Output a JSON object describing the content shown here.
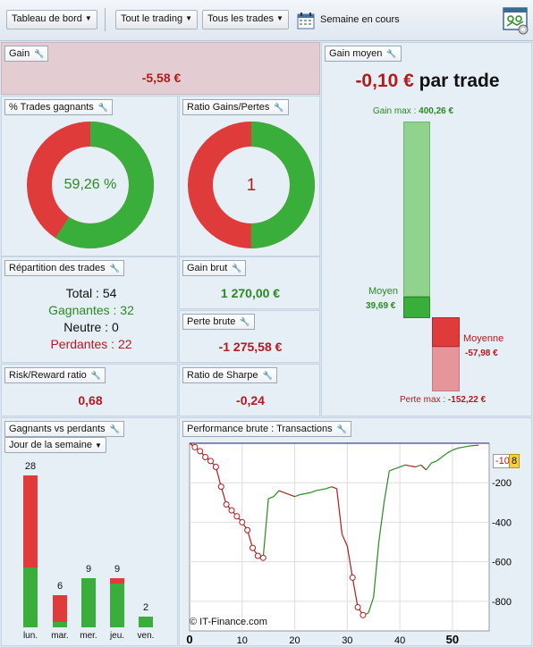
{
  "toolbar": {
    "dashboard": "Tableau de bord",
    "trading": "Tout le trading",
    "trades": "Tous les trades",
    "period": "Semaine en cours"
  },
  "gain": {
    "title": "Gain",
    "value": "-5,58 €"
  },
  "gain_moyen": {
    "title": "Gain moyen",
    "value": "-0,10 €",
    "suffix": "par trade",
    "gain_max_label": "Gain max :",
    "gain_max_value": "400,26 €",
    "moyen_label": "Moyen",
    "moyen_value": "39,69 €",
    "moyenne_label": "Moyenne",
    "moyenne_value": "-57,98 €",
    "perte_max_label": "Perte max :",
    "perte_max_value": "-152,22 €",
    "colors": {
      "gain": "#3aae3a",
      "gain_light": "#8fd38f",
      "loss": "#e03b3b",
      "loss_light": "#e6959a"
    }
  },
  "trades_gagnants": {
    "title": "% Trades gagnants",
    "value": "59,26 %",
    "fraction": 0.5926
  },
  "ratio": {
    "title": "Ratio Gains/Pertes",
    "value": "1",
    "fraction": 0.5
  },
  "repartition": {
    "title": "Répartition des trades",
    "total_label": "Total :",
    "total": "54",
    "gagnantes_label": "Gagnantes :",
    "gagnantes": "32",
    "neutre_label": "Neutre :",
    "neutre": "0",
    "perdantes_label": "Perdantes :",
    "perdantes": "22"
  },
  "gain_brut": {
    "title": "Gain brut",
    "value": "1 270,00 €"
  },
  "perte_brute": {
    "title": "Perte brute",
    "value": "-1 275,58 €"
  },
  "risk_reward": {
    "title": "Risk/Reward ratio",
    "value": "0,68"
  },
  "sharpe": {
    "title": "Ratio de Sharpe",
    "value": "-0,24"
  },
  "gvp": {
    "title": "Gagnants vs perdants",
    "dropdown": "Jour de la semaine",
    "days": [
      {
        "label": "lun.",
        "total": "28",
        "win": 11,
        "loss": 17
      },
      {
        "label": "mar.",
        "total": "6",
        "win": 1,
        "loss": 5
      },
      {
        "label": "mer.",
        "total": "9",
        "win": 9,
        "loss": 0
      },
      {
        "label": "jeu.",
        "total": "9",
        "win": 8,
        "loss": 1
      },
      {
        "label": "ven.",
        "total": "2",
        "win": 2,
        "loss": 0
      }
    ]
  },
  "performance": {
    "title": "Performance brute : Transactions",
    "copyright": "© IT-Finance.com",
    "last_value": "-10",
    "badge": "8"
  },
  "chart_data": {
    "type": "line",
    "xlim": [
      0,
      57
    ],
    "ylim": [
      -950,
      0
    ],
    "xticks": [
      "0",
      "10",
      "20",
      "30",
      "40",
      "50"
    ],
    "yticks": [
      "-200",
      "-400",
      "-600",
      "-800"
    ],
    "grid": true,
    "series": [
      {
        "points": [
          [
            0,
            0
          ],
          [
            1,
            -20
          ],
          [
            2,
            -40
          ],
          [
            3,
            -70
          ],
          [
            4,
            -90
          ],
          [
            5,
            -120
          ],
          [
            6,
            -220
          ],
          [
            7,
            -310
          ],
          [
            8,
            -340
          ],
          [
            9,
            -370
          ],
          [
            10,
            -400
          ],
          [
            11,
            -440
          ],
          [
            12,
            -530
          ],
          [
            13,
            -570
          ],
          [
            14,
            -580
          ],
          [
            15,
            -280
          ],
          [
            16,
            -270
          ],
          [
            17,
            -240
          ],
          [
            18,
            -250
          ],
          [
            19,
            -260
          ],
          [
            20,
            -270
          ],
          [
            21,
            -260
          ],
          [
            22,
            -255
          ],
          [
            23,
            -250
          ],
          [
            24,
            -240
          ],
          [
            25,
            -235
          ],
          [
            26,
            -230
          ],
          [
            27,
            -220
          ],
          [
            28,
            -230
          ],
          [
            29,
            -460
          ],
          [
            30,
            -520
          ],
          [
            31,
            -680
          ],
          [
            32,
            -830
          ],
          [
            33,
            -870
          ],
          [
            34,
            -860
          ],
          [
            35,
            -780
          ],
          [
            36,
            -500
          ],
          [
            37,
            -300
          ],
          [
            38,
            -140
          ],
          [
            39,
            -130
          ],
          [
            40,
            -120
          ],
          [
            41,
            -110
          ],
          [
            42,
            -115
          ],
          [
            43,
            -120
          ],
          [
            44,
            -110
          ],
          [
            45,
            -135
          ],
          [
            46,
            -100
          ],
          [
            47,
            -90
          ],
          [
            48,
            -70
          ],
          [
            49,
            -50
          ],
          [
            50,
            -35
          ],
          [
            51,
            -25
          ],
          [
            52,
            -20
          ],
          [
            53,
            -15
          ],
          [
            54,
            -12
          ],
          [
            55,
            -10
          ]
        ]
      }
    ]
  }
}
